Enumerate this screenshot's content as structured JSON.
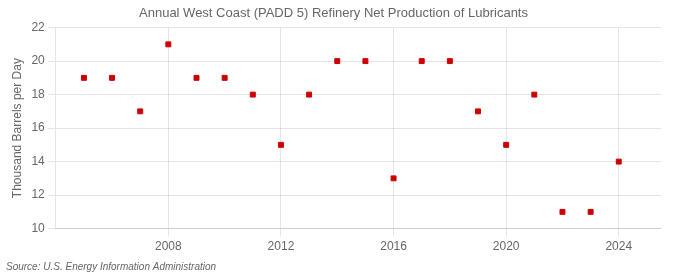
{
  "chart_data": {
    "type": "scatter",
    "title": "Annual West Coast (PADD 5) Refinery Net Production of Lubricants",
    "ylabel": "Thousand Barrels per Day",
    "annotations": [
      "Source: U.S. Energy Information Administration"
    ],
    "x": [
      2005,
      2006,
      2007,
      2008,
      2009,
      2010,
      2011,
      2012,
      2013,
      2014,
      2015,
      2016,
      2017,
      2018,
      2019,
      2020,
      2021,
      2022,
      2023,
      2024
    ],
    "values": [
      19,
      19,
      17,
      21,
      19,
      19,
      18,
      15,
      18,
      20,
      20,
      13,
      20,
      20,
      17,
      15,
      18,
      11,
      11,
      14
    ],
    "color": "#cc0000",
    "marker": "square",
    "xlim": [
      2004.0,
      2025.5
    ],
    "xticks": [
      2008,
      2012,
      2016,
      2020,
      2024
    ],
    "ylim": [
      10,
      22
    ],
    "yticks": [
      10,
      12,
      14,
      16,
      18,
      20,
      22
    ],
    "grid": true
  }
}
